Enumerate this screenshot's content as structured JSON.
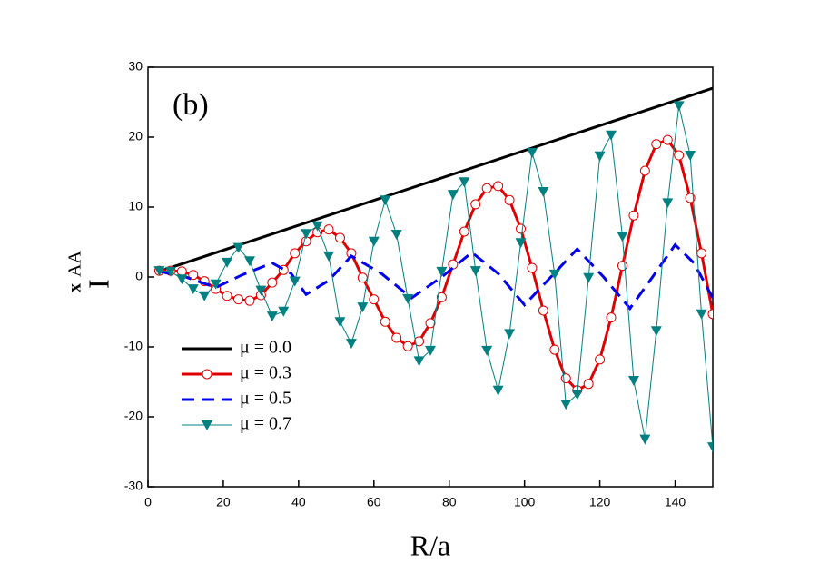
{
  "chart_data": {
    "type": "line",
    "annotation": "(b)",
    "xlabel": "R/a",
    "ylabel": "I",
    "ylabel_sub": "x",
    "ylabel_sup": "AA",
    "xlim": [
      0,
      150
    ],
    "ylim": [
      -30,
      30
    ],
    "xticks": [
      0,
      20,
      40,
      60,
      80,
      100,
      120,
      140
    ],
    "yticks": [
      -30,
      -20,
      -10,
      0,
      10,
      20,
      30
    ],
    "legend": "lower left",
    "series": [
      {
        "name": "μ = 0.0",
        "color": "#000000",
        "width": 3,
        "dashed": false,
        "marker": "none",
        "x": [
          3,
          150
        ],
        "values": [
          0.8,
          27
        ]
      },
      {
        "name": "μ = 0.3",
        "color": "#e00000",
        "width": 3,
        "dashed": false,
        "marker": "circle",
        "x": [
          3,
          6,
          9,
          12,
          15,
          18,
          21,
          24,
          27,
          30,
          33,
          36,
          39,
          42,
          45,
          48,
          51,
          54,
          57,
          60,
          63,
          66,
          69,
          72,
          75,
          78,
          81,
          84,
          87,
          90,
          93,
          96,
          99,
          102,
          105,
          108,
          111,
          114,
          117,
          120,
          123,
          126,
          129,
          132,
          135,
          138,
          141,
          144,
          147,
          150
        ],
        "values": [
          0.9,
          0.9,
          0.8,
          0.3,
          -0.6,
          -1.7,
          -2.7,
          -3.2,
          -3.4,
          -2.6,
          -0.8,
          1.0,
          3.4,
          5.1,
          6.4,
          6.8,
          5.6,
          3.4,
          -0.1,
          -3.2,
          -6.4,
          -8.7,
          -9.9,
          -9.2,
          -6.6,
          -2.9,
          1.8,
          6.5,
          10.4,
          12.7,
          13.0,
          11.0,
          6.9,
          1.3,
          -4.8,
          -10.4,
          -14.5,
          -16.2,
          -15.3,
          -11.8,
          -5.8,
          1.6,
          8.8,
          15.2,
          19.0,
          19.6,
          17.4,
          11.3,
          3.4,
          -5.3
        ]
      },
      {
        "name": "μ = 0.5",
        "color": "#0000ee",
        "width": 3,
        "dashed": true,
        "marker": "none",
        "x": [
          3,
          10,
          18,
          25,
          33,
          38,
          42,
          48,
          54,
          62,
          70,
          78,
          86,
          93,
          100,
          107,
          114,
          121,
          128,
          134,
          140,
          145,
          150
        ],
        "values": [
          0.8,
          0,
          -1.5,
          0.3,
          2,
          0.5,
          -2.5,
          -0.5,
          3,
          0.5,
          -3,
          0,
          3.5,
          0.5,
          -4,
          0,
          4,
          0,
          -4.5,
          0,
          4.6,
          2,
          -3
        ]
      },
      {
        "name": "μ = 0.7",
        "color": "#008080",
        "width": 1,
        "dashed": false,
        "marker": "triangle",
        "x": [
          3,
          6,
          9,
          12,
          15,
          18,
          21,
          24,
          27,
          30,
          33,
          36,
          39,
          42,
          45,
          48,
          51,
          54,
          57,
          60,
          63,
          66,
          69,
          72,
          75,
          78,
          81,
          84,
          87,
          90,
          93,
          96,
          99,
          102,
          105,
          108,
          111,
          114,
          117,
          120,
          123,
          126,
          129,
          132,
          135,
          138,
          141,
          144,
          147,
          150
        ],
        "values": [
          0.9,
          0.8,
          -0.3,
          -1.7,
          -2.7,
          -1.0,
          2.1,
          4.2,
          2.3,
          -1.9,
          -5.6,
          -4.9,
          -0.6,
          6.2,
          7.3,
          3.0,
          -6.4,
          -9.5,
          -4.3,
          5.1,
          11.0,
          6.1,
          -3.1,
          -12.0,
          -10.5,
          0.8,
          11.8,
          13.6,
          0.9,
          -10.5,
          -16.2,
          -8.1,
          4.9,
          17.8,
          12.2,
          0.4,
          -18.2,
          -16.8,
          -0.1,
          17.3,
          20.3,
          5.8,
          -14.8,
          -23.2,
          -7.7,
          10.6,
          24.5,
          17.4,
          -5.3,
          -24.3
        ]
      }
    ]
  }
}
